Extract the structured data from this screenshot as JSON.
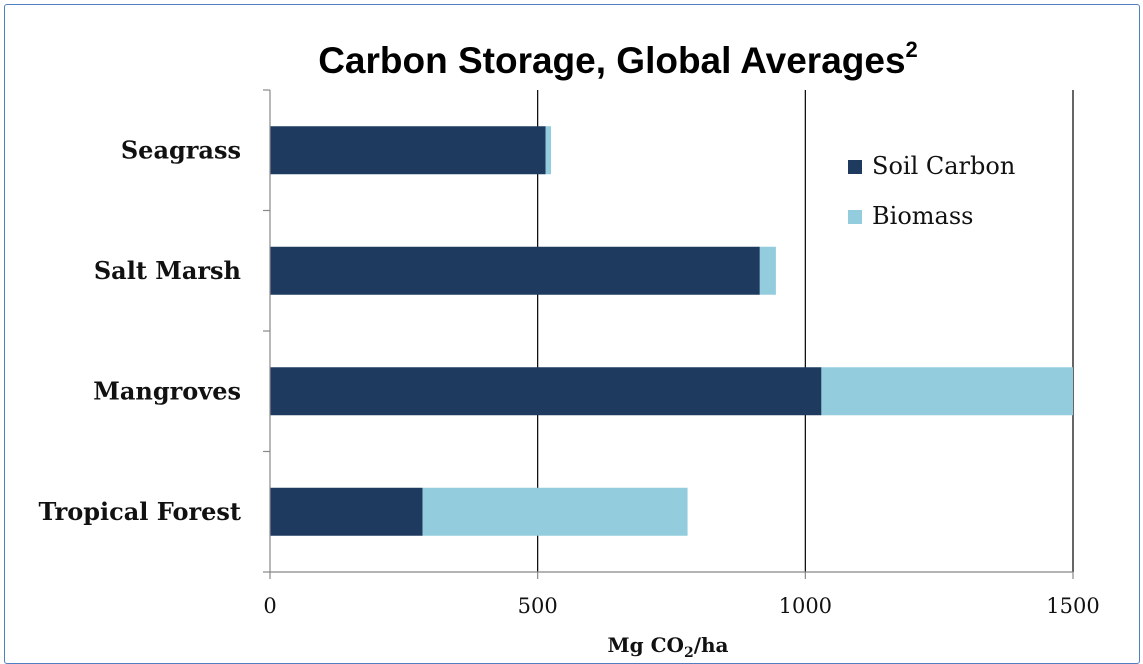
{
  "chart_data": {
    "type": "bar",
    "orientation": "horizontal",
    "stacked": true,
    "title": "Carbon Storage, Global Averages",
    "title_superscript": "2",
    "xlabel": "Mg CO",
    "xlabel_subscript": "2",
    "xlabel_suffix": "/ha",
    "xlim": [
      0,
      1500
    ],
    "xticks": [
      0,
      500,
      1000,
      1500
    ],
    "xtick_labels": [
      "0",
      "500",
      "1000",
      "1500"
    ],
    "grid": "vertical-major",
    "legend_position": "right",
    "categories": [
      "Seagrass",
      "Salt Marsh",
      "Mangroves",
      "Tropical Forest"
    ],
    "series": [
      {
        "name": "Soil Carbon",
        "color": "#1f3a5f",
        "values": [
          515,
          915,
          1030,
          285
        ]
      },
      {
        "name": "Biomass",
        "color": "#93cddd",
        "values": [
          10,
          30,
          470,
          495
        ]
      }
    ]
  }
}
